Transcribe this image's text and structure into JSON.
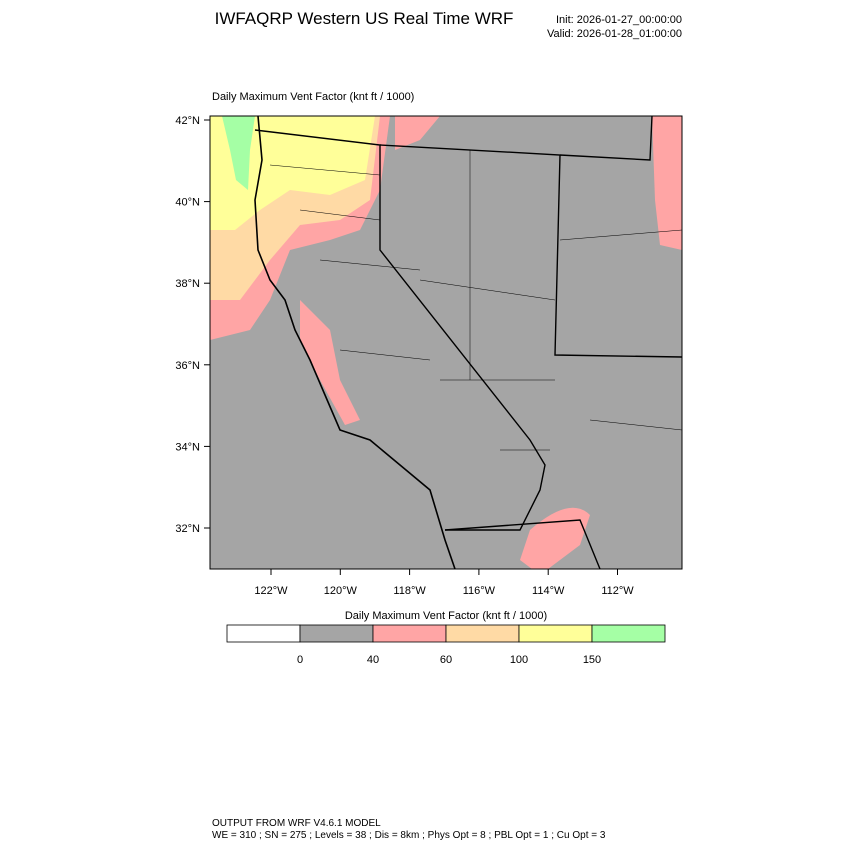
{
  "header": {
    "title": "IWFAQRP Western US Real Time WRF",
    "init": "Init: 2026-01-27_00:00:00",
    "valid": "Valid: 2026-01-28_01:00:00"
  },
  "map": {
    "title": "Daily Maximum Vent Factor   (knt ft / 1000)",
    "lat_labels": [
      "42°N",
      "40°N",
      "38°N",
      "36°N",
      "34°N",
      "32°N"
    ],
    "lon_labels": [
      "122°W",
      "120°W",
      "118°W",
      "116°W",
      "114°W",
      "112°W"
    ]
  },
  "colorbar": {
    "title": "Daily Maximum Vent Factor  (knt ft / 1000)",
    "levels": [
      0,
      40,
      60,
      100,
      150
    ],
    "colors": [
      "#ffffff",
      "#a5a5a5",
      "#ffa5a5",
      "#ffdaa5",
      "#ffff99",
      "#a5ffa5"
    ]
  },
  "footer": {
    "line1": "OUTPUT FROM WRF V4.6.1 MODEL",
    "line2": "WE = 310 ; SN = 275 ; Levels = 38 ; Dis = 8km ; Phys Opt = 8 ; PBL Opt = 1 ; Cu Opt = 3"
  }
}
